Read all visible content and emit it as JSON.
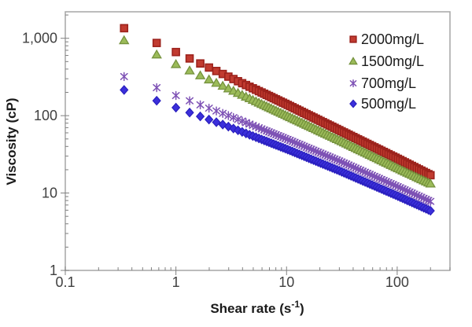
{
  "chart": {
    "y_axis_title": "Viscosity (cP)",
    "x_axis_title_parts": {
      "pre": "Shear rate (s",
      "sup": "-1",
      "post": ")"
    }
  },
  "colors": {
    "plot_border": "#a6a6a6",
    "tick": "#808080",
    "tick_label": "#404040",
    "axis_title": "#1a1a1a",
    "legend_text": "#1a1a1a",
    "background": "#ffffff"
  },
  "chart_data": {
    "type": "scatter",
    "title": "",
    "xlabel": "Shear rate (s-1)",
    "ylabel": "Viscosity (cP)",
    "x_scale": "log",
    "y_scale": "log",
    "grid": false,
    "xlim": [
      0.1,
      300
    ],
    "ylim": [
      1,
      2200
    ],
    "x_ticks": [
      {
        "v": 0.1,
        "label": "0.1"
      },
      {
        "v": 1,
        "label": "1"
      },
      {
        "v": 10,
        "label": "10"
      },
      {
        "v": 100,
        "label": "100"
      }
    ],
    "y_ticks": [
      {
        "v": 1,
        "label": "1"
      },
      {
        "v": 10,
        "label": "10"
      },
      {
        "v": 100,
        "label": "100"
      },
      {
        "v": 1000,
        "label": "1,000"
      }
    ],
    "legend_position": "top-right-inside",
    "x_sampling": {
      "note": "shear-rate ramp: linear steps at low shear, then quasi-continuous to 200 1/s",
      "start": 0.34,
      "linear_step": 0.33,
      "linear_until": 6.8,
      "geometric_ratio": 1.05,
      "end": 200
    },
    "series": [
      {
        "name": "2000mg/L",
        "marker": "square",
        "fill": "#c13b30",
        "stroke": "#9c221c",
        "anchors_x": [
          0.34,
          0.67,
          1,
          3,
          10,
          30,
          100,
          200
        ],
        "anchors_y": [
          1350,
          870,
          664,
          318,
          140,
          65,
          28,
          17
        ]
      },
      {
        "name": "1500mg/L",
        "marker": "triangle",
        "fill": "#9bbb59",
        "stroke": "#75923d",
        "anchors_x": [
          0.34,
          0.67,
          1,
          3,
          10,
          30,
          100,
          200
        ],
        "anchors_y": [
          940,
          615,
          462,
          223,
          100,
          48,
          21,
          13.2
        ]
      },
      {
        "name": "700mg/L",
        "marker": "star",
        "fill": "none",
        "stroke": "#7e52b5",
        "anchors_x": [
          0.34,
          0.67,
          1,
          3,
          10,
          30,
          100,
          200
        ],
        "anchors_y": [
          320,
          230,
          182,
          100,
          50,
          26,
          12.2,
          7.8
        ]
      },
      {
        "name": "500mg/L",
        "marker": "diamond",
        "fill": "#3b2fdb",
        "stroke": "#2a1fbe",
        "anchors_x": [
          0.34,
          0.67,
          1,
          3,
          10,
          30,
          100,
          200
        ],
        "anchors_y": [
          215,
          156,
          127,
          72,
          37,
          19.4,
          9.2,
          5.9
        ]
      }
    ]
  }
}
